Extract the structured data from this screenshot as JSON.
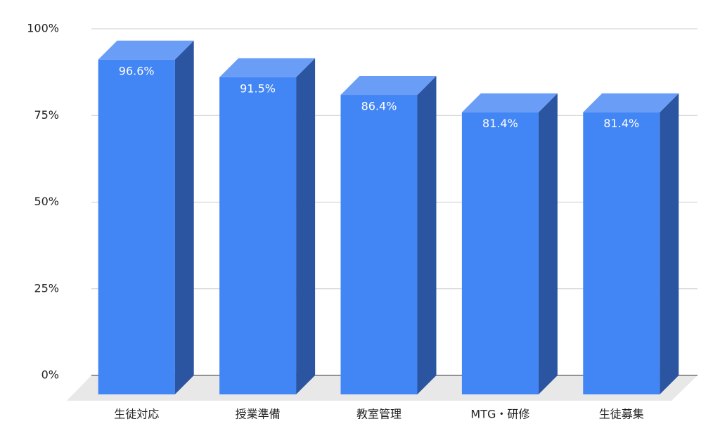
{
  "chart_data": {
    "type": "bar3d",
    "categories": [
      "生徒対応",
      "授業準備",
      "教室管理",
      "MTG・研修",
      "生徒募集"
    ],
    "values": [
      96.6,
      91.5,
      86.4,
      81.4,
      81.4
    ],
    "value_labels": [
      "96.6%",
      "91.5%",
      "86.4%",
      "81.4%",
      "81.4%"
    ],
    "color": "#4285f4",
    "ylim": [
      0,
      100
    ],
    "yticks": [
      {
        "value": 0,
        "label": "0%"
      },
      {
        "value": 25,
        "label": "25%"
      },
      {
        "value": 50,
        "label": "50%"
      },
      {
        "value": 75,
        "label": "75%"
      },
      {
        "value": 100,
        "label": "100%"
      }
    ],
    "grid": true
  }
}
